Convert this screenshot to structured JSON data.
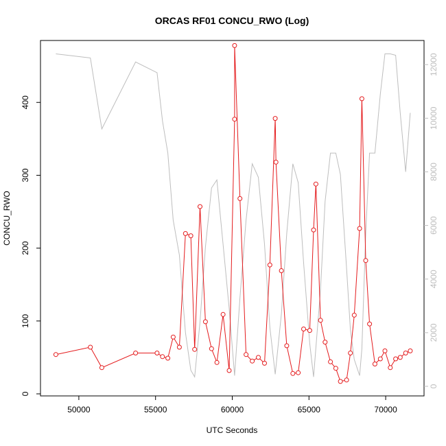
{
  "chart_data": {
    "type": "line",
    "title": "ORCAS RF01 CONCU_RWO (Log)",
    "xlabel": "UTC Seconds",
    "ylabel": "CONCU_RWO",
    "xlim": [
      47500,
      72500
    ],
    "ylim": [
      0,
      485
    ],
    "y2lim": [
      0,
      12900
    ],
    "xticks": [
      50000,
      55000,
      60000,
      65000,
      70000
    ],
    "yticks": [
      0,
      100,
      200,
      300,
      400
    ],
    "y2ticks": [
      0,
      2000,
      4000,
      6000,
      8000,
      10000,
      12000
    ],
    "grid": false,
    "colors": {
      "primary": "#e41a1c",
      "secondary": "#bdbdbd"
    },
    "series": [
      {
        "axis": "left",
        "color": "#e41a1c",
        "markers": true,
        "x": [
          48500,
          50750,
          51500,
          53700,
          55100,
          55450,
          55800,
          56150,
          56550,
          56950,
          57300,
          57550,
          57900,
          58250,
          58650,
          59000,
          59400,
          59800,
          60150,
          60150,
          60500,
          60900,
          61300,
          61700,
          62100,
          62450,
          62800,
          62850,
          63200,
          63550,
          63950,
          64300,
          64650,
          65050,
          65300,
          65450,
          65750,
          66050,
          66400,
          66750,
          67050,
          67450,
          67700,
          67950,
          68300,
          68450,
          68700,
          68950,
          69300,
          69650,
          69950,
          70300,
          70650,
          70950,
          71300,
          71600
        ],
        "y": [
          54,
          64,
          36,
          56,
          56,
          51,
          49,
          78,
          64,
          220,
          217,
          61,
          257,
          99,
          62,
          43,
          109,
          32,
          377,
          478,
          268,
          54,
          45,
          50,
          42,
          177,
          378,
          318,
          169,
          66,
          28,
          29,
          89,
          87,
          225,
          288,
          101,
          71,
          44,
          35,
          17,
          19,
          56,
          108,
          227,
          405,
          183,
          96,
          41,
          48,
          59,
          36,
          48,
          50,
          56,
          59
        ]
      },
      {
        "axis": "right",
        "color": "#bdbdbd",
        "markers": false,
        "x": [
          48500,
          50750,
          51500,
          53700,
          55100,
          55450,
          55800,
          56150,
          56550,
          56950,
          57300,
          57550,
          57900,
          58250,
          58650,
          59000,
          59400,
          59800,
          60150,
          60500,
          60900,
          61300,
          61700,
          62100,
          62450,
          62800,
          63200,
          63550,
          63950,
          64300,
          64650,
          65050,
          65300,
          65750,
          66050,
          66400,
          66750,
          67050,
          67450,
          67700,
          67950,
          68300,
          68450,
          68700,
          68950,
          69300,
          69650,
          69950,
          70300,
          70650,
          70950,
          71300,
          71600
        ],
        "y": [
          12400,
          12250,
          9600,
          12100,
          11700,
          9900,
          8700,
          6200,
          4900,
          2000,
          600,
          350,
          2400,
          5200,
          7400,
          7700,
          5300,
          2900,
          400,
          3300,
          6200,
          8300,
          7800,
          5300,
          2200,
          450,
          2700,
          5700,
          8300,
          7600,
          4600,
          1600,
          350,
          3600,
          6900,
          8700,
          8700,
          7900,
          4400,
          2100,
          1000,
          400,
          1400,
          5700,
          8700,
          8700,
          10900,
          12400,
          12400,
          12350,
          10200,
          8000,
          10200
        ]
      }
    ]
  }
}
